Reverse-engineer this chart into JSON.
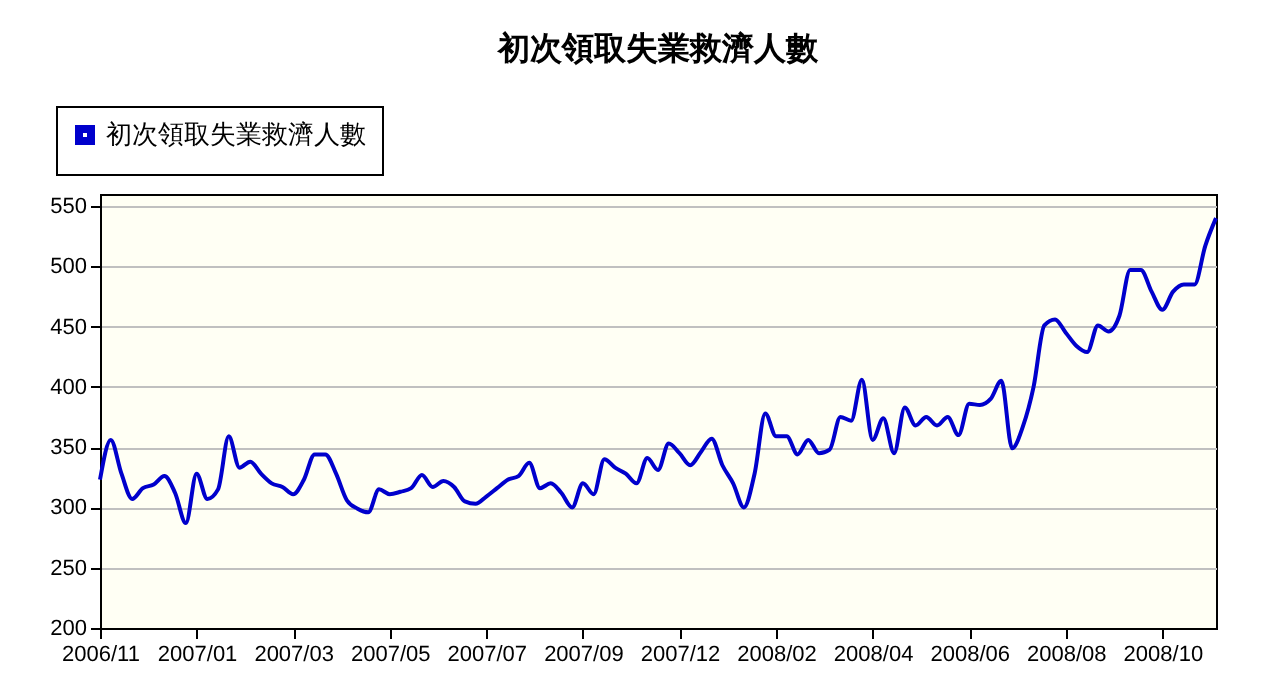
{
  "chart_data": {
    "type": "line",
    "title": "初次領取失業救濟人數",
    "categories": [
      "2006/11",
      null,
      null,
      null,
      null,
      null,
      null,
      null,
      null,
      "2007/01",
      null,
      null,
      null,
      null,
      null,
      null,
      null,
      null,
      "2007/03",
      null,
      null,
      null,
      null,
      null,
      null,
      null,
      null,
      "2007/05",
      null,
      null,
      null,
      null,
      null,
      null,
      null,
      null,
      "2007/07",
      null,
      null,
      null,
      null,
      null,
      null,
      null,
      null,
      "2007/09",
      null,
      null,
      null,
      null,
      null,
      null,
      null,
      null,
      "2007/12",
      null,
      null,
      null,
      null,
      null,
      null,
      null,
      null,
      "2008/02",
      null,
      null,
      null,
      null,
      null,
      null,
      null,
      null,
      "2008/04",
      null,
      null,
      null,
      null,
      null,
      null,
      null,
      null,
      "2008/06",
      null,
      null,
      null,
      null,
      null,
      null,
      null,
      null,
      "2008/08",
      null,
      null,
      null,
      null,
      null,
      null,
      null,
      null,
      "2008/10",
      null,
      null,
      null,
      null,
      null
    ],
    "series": [
      {
        "name": "初次領取失業救濟人數",
        "color": "#0000cc",
        "values": [
          323,
          356,
          328,
          307,
          316,
          319,
          326,
          312,
          287,
          328,
          307,
          315,
          359,
          333,
          338,
          328,
          320,
          317,
          311,
          323,
          344,
          344,
          328,
          306,
          299,
          296,
          315,
          311,
          313,
          316,
          327,
          317,
          322,
          317,
          305,
          303,
          309,
          316,
          323,
          326,
          337,
          316,
          320,
          312,
          300,
          320,
          311,
          340,
          333,
          328,
          320,
          341,
          331,
          353,
          345,
          335,
          346,
          357,
          335,
          320,
          300,
          328,
          378,
          359,
          359,
          344,
          356,
          345,
          348,
          375,
          372,
          406,
          356,
          374,
          345,
          383,
          368,
          375,
          368,
          375,
          360,
          386,
          385,
          390,
          405,
          349,
          367,
          400,
          451,
          456,
          445,
          434,
          429,
          451,
          446,
          459,
          497,
          497,
          479,
          464,
          479,
          485,
          485,
          517,
          540
        ]
      }
    ],
    "ylim": [
      200,
      560
    ],
    "yticks": [
      200,
      250,
      300,
      350,
      400,
      450,
      500,
      550
    ],
    "grid": "y",
    "legend": "top left"
  }
}
